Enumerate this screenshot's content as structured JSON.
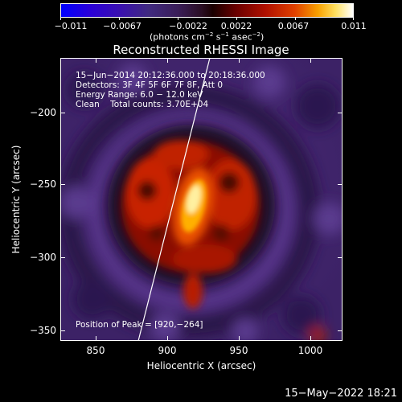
{
  "colorbar": {
    "tick_labels": [
      "−0.011",
      "−0.0067",
      "−0.0022",
      "0.0022",
      "0.0067",
      "0.011"
    ],
    "units_prefix": "(photons cm",
    "units_exp1": "−2",
    "units_mid1": " s",
    "units_exp2": "−1",
    "units_mid2": " asec",
    "units_exp3": "−2",
    "units_suffix": ")"
  },
  "title": "Reconstructed RHESSI Image",
  "annotations": {
    "time_range": "15−Jun−2014 20:12:36.000 to 20:18:36.000",
    "detectors": "Detectors: 3F 4F 5F 6F 7F 8F, Att 0",
    "energy_range": "Energy Range: 6.0 − 12.0 keV",
    "clean_counts": "Clean    Total counts: 3.70E+04",
    "peak_position": "Position of Peak = [920,−264]"
  },
  "axes": {
    "x_label": "Heliocentric X (arcsec)",
    "y_label": "Heliocentric Y (arcsec)",
    "x_ticks": [
      "850",
      "900",
      "950",
      "1000"
    ],
    "y_ticks": [
      "−200",
      "−250",
      "−300",
      "−350"
    ]
  },
  "footer_date": "15−May−2022 18:21",
  "colors": {
    "background": "#000000",
    "limb_line": "#ffffff",
    "source_peak": "#fff0a0"
  }
}
